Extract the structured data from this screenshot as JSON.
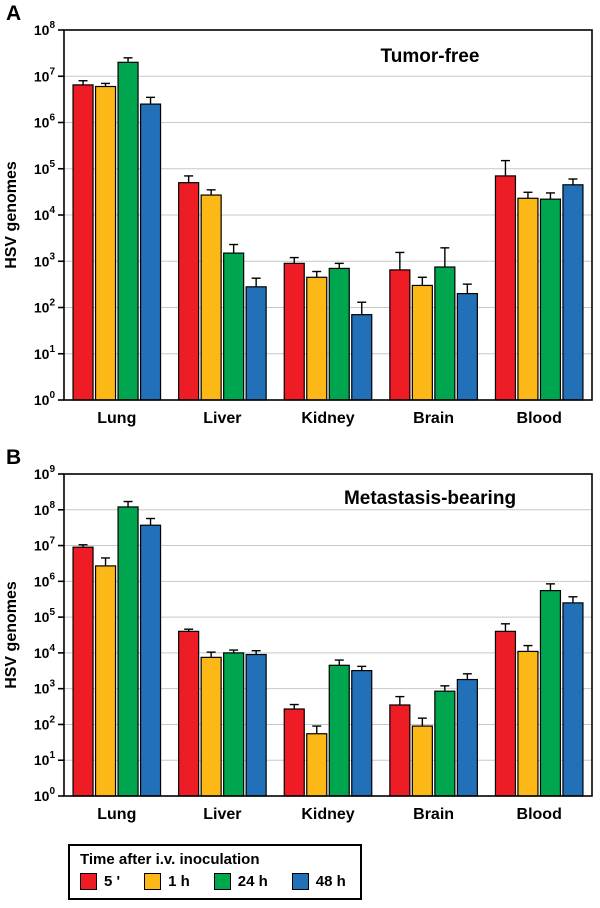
{
  "figure": {
    "panels": [
      {
        "label": "A"
      },
      {
        "label": "B"
      }
    ],
    "legend": {
      "title": "Time after i.v. inoculation",
      "items": [
        {
          "label": "5 '",
          "color": "#ee1c25"
        },
        {
          "label": "1 h",
          "color": "#fcb817"
        },
        {
          "label": "24 h",
          "color": "#00a550"
        },
        {
          "label": "48 h",
          "color": "#2170b8"
        }
      ]
    }
  },
  "chart_data": [
    {
      "type": "bar",
      "title": "Tumor-free",
      "ylabel": "HSV genomes",
      "yscale": "log",
      "ylim": [
        1,
        100000000
      ],
      "grid": true,
      "categories": [
        "Lung",
        "Liver",
        "Kidney",
        "Brain",
        "Blood"
      ],
      "series": [
        {
          "name": "5 '",
          "color": "#ee1c25",
          "values": [
            6500000,
            50000,
            900,
            650,
            70000
          ],
          "upper_errors": [
            1500000,
            20000,
            300,
            900,
            80000
          ]
        },
        {
          "name": "1 h",
          "color": "#fcb817",
          "values": [
            6000000,
            27000,
            450,
            300,
            23000
          ],
          "upper_errors": [
            1000000,
            8000,
            150,
            150,
            8000
          ]
        },
        {
          "name": "24 h",
          "color": "#00a550",
          "values": [
            20000000,
            1500,
            700,
            750,
            22000
          ],
          "upper_errors": [
            5000000,
            800,
            200,
            1200,
            8000
          ]
        },
        {
          "name": "48 h",
          "color": "#2170b8",
          "values": [
            2500000,
            280,
            70,
            200,
            45000
          ],
          "upper_errors": [
            1000000,
            150,
            60,
            120,
            15000
          ]
        }
      ]
    },
    {
      "type": "bar",
      "title": "Metastasis-bearing",
      "ylabel": "HSV genomes",
      "yscale": "log",
      "ylim": [
        1,
        1000000000
      ],
      "grid": true,
      "categories": [
        "Lung",
        "Liver",
        "Kidney",
        "Brain",
        "Blood"
      ],
      "series": [
        {
          "name": "5 '",
          "color": "#ee1c25",
          "values": [
            9000000,
            40000,
            270,
            350,
            40000
          ],
          "upper_errors": [
            1500000,
            6000,
            90,
            250,
            25000
          ]
        },
        {
          "name": "1 h",
          "color": "#fcb817",
          "values": [
            2700000,
            7500,
            55,
            90,
            11000
          ],
          "upper_errors": [
            1800000,
            3000,
            35,
            60,
            5000
          ]
        },
        {
          "name": "24 h",
          "color": "#00a550",
          "values": [
            120000000,
            10000,
            4500,
            850,
            550000
          ],
          "upper_errors": [
            50000000,
            2000,
            1800,
            350,
            300000
          ]
        },
        {
          "name": "48 h",
          "color": "#2170b8",
          "values": [
            37000000,
            9000,
            3200,
            1800,
            250000
          ],
          "upper_errors": [
            20000000,
            2500,
            1000,
            800,
            120000
          ]
        }
      ]
    }
  ]
}
